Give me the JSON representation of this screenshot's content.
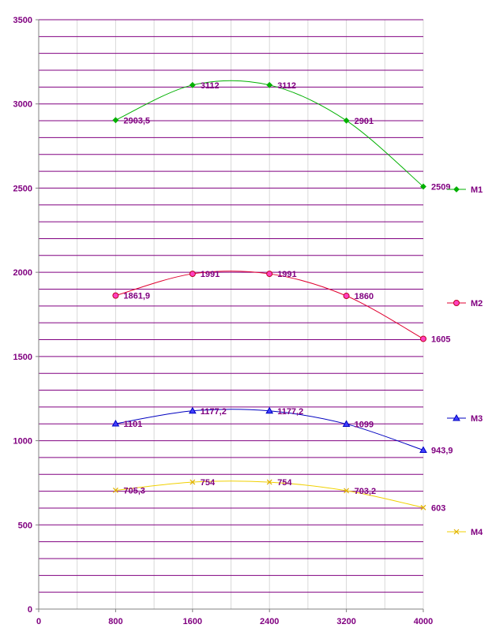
{
  "chart_data": {
    "type": "line",
    "x": [
      800,
      1600,
      2400,
      3200,
      4000
    ],
    "xlim": [
      0,
      4000
    ],
    "ylim": [
      0,
      3500
    ],
    "x_tick_labels": [
      "0",
      "800",
      "1600",
      "2400",
      "3200",
      "4000"
    ],
    "y_tick_labels": [
      "0",
      "500",
      "1000",
      "1500",
      "2000",
      "2500",
      "3000",
      "3500"
    ],
    "grid": true,
    "legend_placement": "right",
    "series": [
      {
        "name": "M1",
        "color": "#00b000",
        "marker": "diamond",
        "values": [
          2903.5,
          3112,
          3112,
          2901,
          2509
        ],
        "labels": [
          "2903,5",
          "3112",
          "3112",
          "2901",
          "2509"
        ]
      },
      {
        "name": "M2",
        "color": "#e00030",
        "marker": "circle",
        "values": [
          1861.9,
          1991,
          1991,
          1860,
          1605
        ],
        "labels": [
          "1861,9",
          "1991",
          "1991",
          "1860",
          "1605"
        ]
      },
      {
        "name": "M3",
        "color": "#0000c0",
        "marker": "triangle",
        "values": [
          1101,
          1177.2,
          1177.2,
          1099,
          943.9
        ],
        "labels": [
          "1101",
          "1177,2",
          "1177,2",
          "1099",
          "943,9"
        ]
      },
      {
        "name": "M4",
        "color": "#f0d000",
        "marker": "x",
        "values": [
          705.3,
          754,
          754,
          703.2,
          603
        ],
        "labels": [
          "705,3",
          "754",
          "754",
          "703,2",
          "603"
        ]
      }
    ]
  }
}
